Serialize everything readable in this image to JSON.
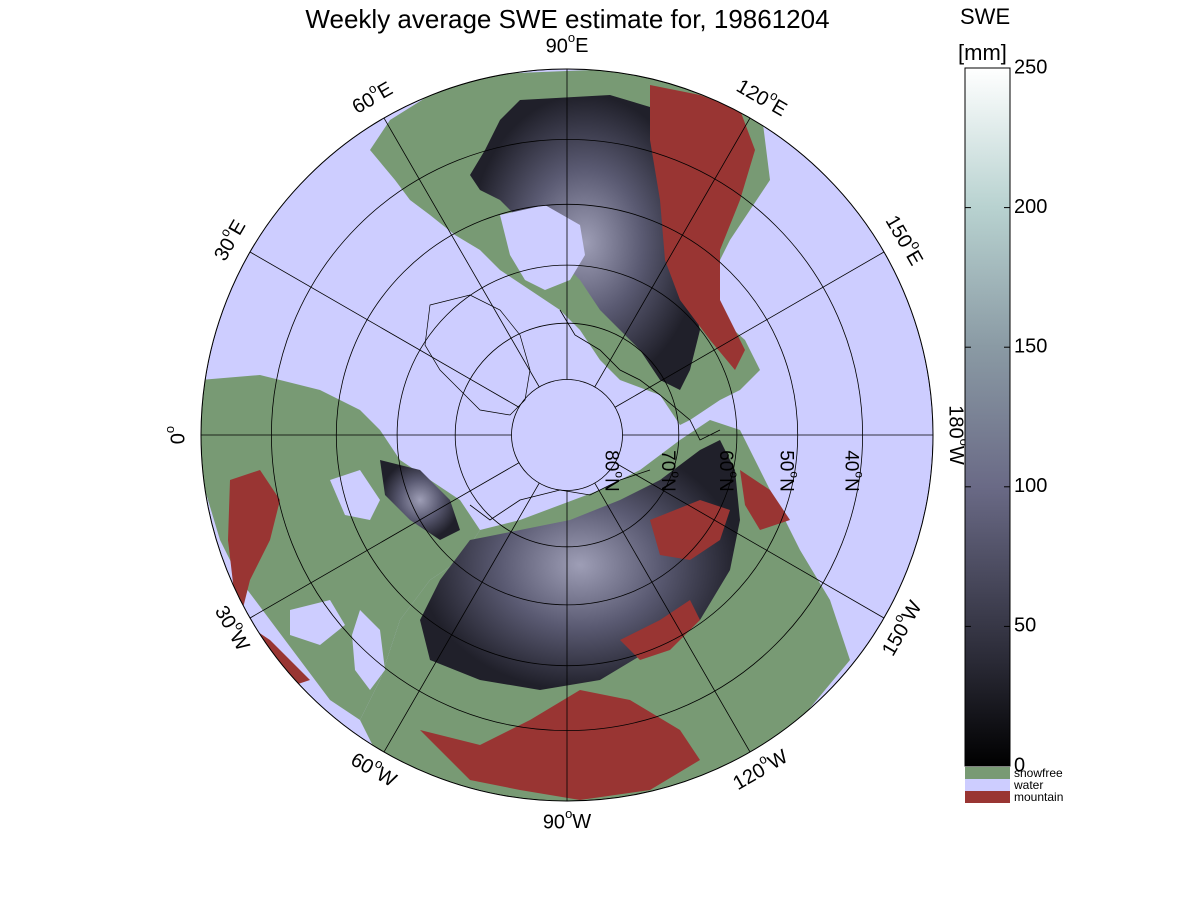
{
  "title": "Weekly average SWE estimate for, 19861204",
  "colorbar": {
    "label_line1": "SWE",
    "label_line2": "[mm]",
    "ticks": [
      0,
      50,
      100,
      150,
      200,
      250
    ],
    "range": [
      0,
      250
    ],
    "categories": [
      {
        "label": "snowfree",
        "color": "#789a74"
      },
      {
        "label": "water",
        "color": "#cdcdff"
      },
      {
        "label": "mountain",
        "color": "#993533"
      }
    ]
  },
  "map": {
    "projection": "north-polar-stereographic",
    "colors": {
      "land": "#789a74",
      "water": "#cdcdff",
      "mountain": "#993533",
      "snow_dark": "#1b1b22",
      "snow_mid": "#5b5b74",
      "snow_light": "#9a9ab4"
    },
    "lon_labels": [
      {
        "text": "90",
        "suffix": "W",
        "lon": -90
      },
      {
        "text": "120",
        "suffix": "W",
        "lon": -120
      },
      {
        "text": "150",
        "suffix": "W",
        "lon": -150
      },
      {
        "text": "180",
        "suffix": "W",
        "lon": 180
      },
      {
        "text": "150",
        "suffix": "E",
        "lon": 150
      },
      {
        "text": "120",
        "suffix": "E",
        "lon": 120
      },
      {
        "text": "90",
        "suffix": "E",
        "lon": 90
      },
      {
        "text": "60",
        "suffix": "E",
        "lon": 60
      },
      {
        "text": "30",
        "suffix": "E",
        "lon": 30
      },
      {
        "text": "0",
        "suffix": "",
        "lon": 0
      },
      {
        "text": "30",
        "suffix": "W",
        "lon": -30
      },
      {
        "text": "60",
        "suffix": "W",
        "lon": -60
      }
    ],
    "lat_labels": [
      {
        "text": "80",
        "suffix": "N",
        "lat": 80
      },
      {
        "text": "70",
        "suffix": "N",
        "lat": 70
      },
      {
        "text": "60",
        "suffix": "N",
        "lat": 60
      },
      {
        "text": "50",
        "suffix": "N",
        "lat": 50
      },
      {
        "text": "40",
        "suffix": "N",
        "lat": 40
      }
    ],
    "lat_circles": [
      80,
      70,
      60,
      50,
      40,
      30
    ],
    "meridians_deg": [
      0,
      30,
      60,
      90,
      120,
      150,
      180,
      210,
      240,
      270,
      300,
      330
    ]
  }
}
